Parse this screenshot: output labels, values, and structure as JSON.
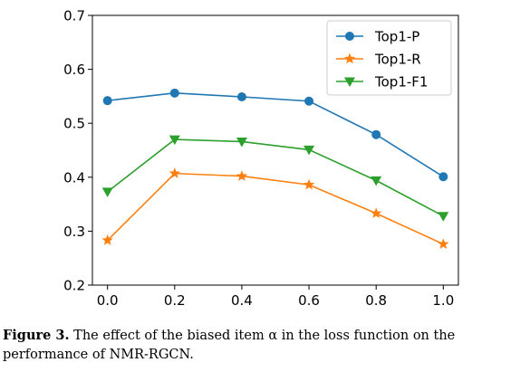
{
  "chart_data": {
    "type": "line",
    "x": [
      0.0,
      0.2,
      0.4,
      0.6,
      0.8,
      1.0
    ],
    "x_tick_labels": [
      "0.0",
      "0.2",
      "0.4",
      "0.6",
      "0.8",
      "1.0"
    ],
    "y_ticks": [
      0.2,
      0.3,
      0.4,
      0.5,
      0.6,
      0.7
    ],
    "y_tick_labels": [
      "0.2",
      "0.3",
      "0.4",
      "0.5",
      "0.6",
      "0.7"
    ],
    "xlim": [
      -0.045,
      1.045
    ],
    "ylim": [
      0.2,
      0.7
    ],
    "grid": false,
    "legend_position": "top-right",
    "series": [
      {
        "name": "Top1-P",
        "color": "#1f77b4",
        "marker": "circle",
        "values": [
          0.542,
          0.556,
          0.549,
          0.541,
          0.479,
          0.401
        ]
      },
      {
        "name": "Top1-R",
        "color": "#ff7f0e",
        "marker": "star",
        "values": [
          0.283,
          0.407,
          0.402,
          0.386,
          0.333,
          0.276
        ]
      },
      {
        "name": "Top1-F1",
        "color": "#2ca02c",
        "marker": "triangle-down",
        "values": [
          0.373,
          0.47,
          0.466,
          0.451,
          0.394,
          0.328
        ]
      }
    ]
  },
  "caption": {
    "label": "Figure 3.",
    "text": " The effect of the biased item α in the loss function on the performance of NMR-RGCN."
  }
}
